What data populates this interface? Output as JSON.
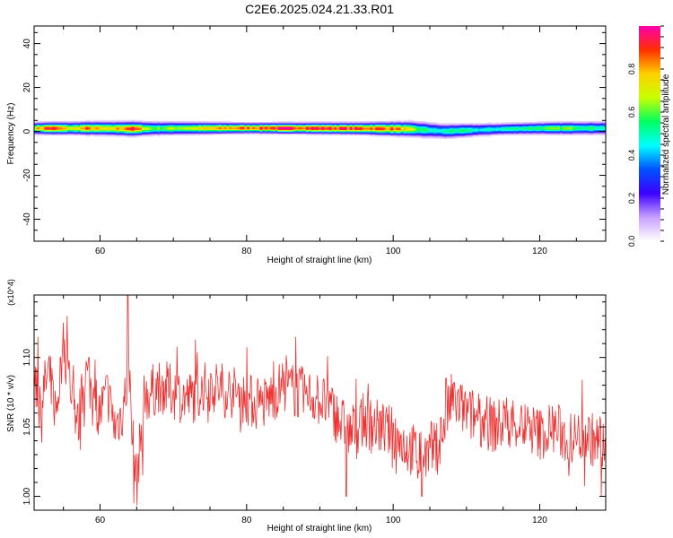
{
  "title": "C2E6.2025.024.21.33.R01",
  "chart_data": [
    {
      "type": "heatmap",
      "xlabel": "Height of straight line (km)",
      "ylabel": "Frequency (Hz)",
      "xlim": [
        51,
        129
      ],
      "ylim": [
        -50,
        48
      ],
      "x_ticks": [
        60,
        80,
        100,
        120
      ],
      "y_ticks": [
        -40,
        -20,
        0,
        20,
        40
      ],
      "grid": false,
      "colorbar": {
        "label": "Normalized spectral amplitude",
        "range": [
          0.0,
          1.0
        ],
        "ticks": [
          0.0,
          0.2,
          0.4,
          0.6,
          0.8
        ],
        "tick_labels": [
          "0.0",
          "0.2",
          "0.4",
          "0.6",
          "0.8"
        ],
        "colors": [
          "#ffffff",
          "#c8a0ff",
          "#3c00ff",
          "#0050ff",
          "#00ffff",
          "#00ff60",
          "#c8ff00",
          "#ffd000",
          "#ff3000",
          "#ff00b0"
        ]
      },
      "band": {
        "center_freq_hz": [
          [
            51,
            1.5
          ],
          [
            60,
            1.5
          ],
          [
            64,
            1.3
          ],
          [
            70,
            1.5
          ],
          [
            80,
            1.6
          ],
          [
            90,
            1.5
          ],
          [
            96,
            1.4
          ],
          [
            102,
            1.2
          ],
          [
            104,
            0.8
          ],
          [
            107,
            0.2
          ],
          [
            110,
            0.6
          ],
          [
            115,
            1.2
          ],
          [
            120,
            1.5
          ],
          [
            129,
            1.6
          ]
        ],
        "peak_amplitude": [
          [
            51,
            0.75
          ],
          [
            53,
            0.95
          ],
          [
            56,
            0.7
          ],
          [
            58,
            0.85
          ],
          [
            61,
            0.7
          ],
          [
            64,
            0.95
          ],
          [
            67,
            0.6
          ],
          [
            72,
            0.7
          ],
          [
            78,
            0.85
          ],
          [
            84,
            0.95
          ],
          [
            90,
            0.95
          ],
          [
            96,
            0.9
          ],
          [
            100,
            0.88
          ],
          [
            103,
            0.6
          ],
          [
            106,
            0.45
          ],
          [
            108,
            0.55
          ],
          [
            112,
            0.45
          ],
          [
            118,
            0.55
          ],
          [
            124,
            0.62
          ],
          [
            129,
            0.5
          ]
        ],
        "halfwidth_hz": [
          [
            51,
            1.8
          ],
          [
            64,
            2.2
          ],
          [
            80,
            1.6
          ],
          [
            95,
            1.8
          ],
          [
            104,
            2.4
          ],
          [
            115,
            1.8
          ],
          [
            129,
            2.0
          ]
        ]
      }
    },
    {
      "type": "line",
      "xlabel": "Height of straight line (km)",
      "ylabel": "SNR (10 * v/v)",
      "y_multiplier": "(x10^4)",
      "xlim": [
        51,
        129
      ],
      "ylim": [
        0.99,
        1.145
      ],
      "x_ticks": [
        60,
        80,
        100,
        120
      ],
      "y_ticks": [
        1.0,
        1.05,
        1.1
      ],
      "y_tick_labels": [
        "1.00",
        "1.05",
        "1.10"
      ],
      "grid": false,
      "series": [
        {
          "color": "#ee3030",
          "values_envelope": [
            [
              51,
              1.085
            ],
            [
              52,
              1.07
            ],
            [
              53,
              1.09
            ],
            [
              54,
              1.06
            ],
            [
              55,
              1.11
            ],
            [
              56,
              1.08
            ],
            [
              57,
              1.05
            ],
            [
              58,
              1.09
            ],
            [
              59,
              1.075
            ],
            [
              60,
              1.06
            ],
            [
              61,
              1.075
            ],
            [
              62,
              1.05
            ],
            [
              63,
              1.06
            ],
            [
              64,
              1.09
            ],
            [
              64.5,
              1.04
            ],
            [
              65,
              1.01
            ],
            [
              66,
              1.07
            ],
            [
              68,
              1.08
            ],
            [
              70,
              1.075
            ],
            [
              72,
              1.07
            ],
            [
              75,
              1.08
            ],
            [
              78,
              1.075
            ],
            [
              80,
              1.07
            ],
            [
              82,
              1.065
            ],
            [
              85,
              1.08
            ],
            [
              87,
              1.075
            ],
            [
              90,
              1.07
            ],
            [
              92,
              1.06
            ],
            [
              94,
              1.045
            ],
            [
              96,
              1.055
            ],
            [
              98,
              1.05
            ],
            [
              100,
              1.045
            ],
            [
              102,
              1.035
            ],
            [
              104,
              1.03
            ],
            [
              106,
              1.035
            ],
            [
              108,
              1.07
            ],
            [
              110,
              1.06
            ],
            [
              112,
              1.055
            ],
            [
              114,
              1.05
            ],
            [
              116,
              1.055
            ],
            [
              118,
              1.05
            ],
            [
              120,
              1.045
            ],
            [
              122,
              1.05
            ],
            [
              124,
              1.04
            ],
            [
              126,
              1.045
            ],
            [
              129,
              1.035
            ]
          ],
          "spikes": [
            [
              51.5,
              1.115
            ],
            [
              55.5,
              1.13
            ],
            [
              58.5,
              1.1
            ],
            [
              63.8,
              1.145
            ],
            [
              64.6,
              0.995
            ],
            [
              65.8,
              1.015
            ],
            [
              86.7,
              1.115
            ],
            [
              93.6,
              1.0
            ],
            [
              103.9,
              1.0
            ],
            [
              107.2,
              1.085
            ],
            [
              128.4,
              1.0
            ]
          ]
        }
      ]
    }
  ]
}
